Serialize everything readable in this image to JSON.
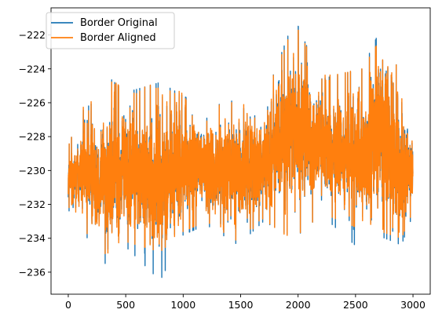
{
  "chart_data": {
    "type": "line",
    "title": "",
    "xlabel": "",
    "ylabel": "",
    "xlim": [
      -150,
      3150
    ],
    "ylim": [
      -237.3,
      -220.4
    ],
    "xticks": [
      0,
      500,
      1000,
      1500,
      2000,
      2500,
      3000
    ],
    "yticks": [
      -236,
      -234,
      -232,
      -230,
      -228,
      -226,
      -224,
      -222
    ],
    "legend_position": "top-left",
    "grid": false,
    "series": [
      {
        "name": "Border Original",
        "color": "#1f77b4",
        "n_points": 3000,
        "envelope": [
          {
            "x": 0,
            "min": -232.3,
            "max": -228.6
          },
          {
            "x": 100,
            "min": -233.5,
            "max": -226.6
          },
          {
            "x": 250,
            "min": -234.6,
            "max": -225.8
          },
          {
            "x": 370,
            "min": -236.1,
            "max": -224.6
          },
          {
            "x": 500,
            "min": -234.5,
            "max": -225.4
          },
          {
            "x": 800,
            "min": -236.5,
            "max": -224.8
          },
          {
            "x": 1000,
            "min": -233.8,
            "max": -225.6
          },
          {
            "x": 1200,
            "min": -233.2,
            "max": -226.3
          },
          {
            "x": 1480,
            "min": -234.4,
            "max": -225.8
          },
          {
            "x": 1700,
            "min": -233.0,
            "max": -225.9
          },
          {
            "x": 1970,
            "min": -234.0,
            "max": -221.0
          },
          {
            "x": 2200,
            "min": -232.6,
            "max": -224.6
          },
          {
            "x": 2560,
            "min": -234.8,
            "max": -224.0
          },
          {
            "x": 2720,
            "min": -233.9,
            "max": -221.6
          },
          {
            "x": 2900,
            "min": -234.4,
            "max": -224.5
          },
          {
            "x": 3000,
            "min": -232.6,
            "max": -228.3
          }
        ]
      },
      {
        "name": "Border Aligned",
        "color": "#ff7f0e",
        "n_points": 3000,
        "envelope": [
          {
            "x": 0,
            "min": -232.1,
            "max": -228.6
          },
          {
            "x": 100,
            "min": -233.4,
            "max": -226.4
          },
          {
            "x": 250,
            "min": -234.5,
            "max": -225.6
          },
          {
            "x": 390,
            "min": -235.3,
            "max": -224.7
          },
          {
            "x": 500,
            "min": -234.2,
            "max": -225.3
          },
          {
            "x": 800,
            "min": -234.8,
            "max": -224.4
          },
          {
            "x": 1000,
            "min": -233.6,
            "max": -225.5
          },
          {
            "x": 1200,
            "min": -233.0,
            "max": -226.0
          },
          {
            "x": 1480,
            "min": -234.2,
            "max": -225.6
          },
          {
            "x": 1700,
            "min": -232.9,
            "max": -225.8
          },
          {
            "x": 1970,
            "min": -234.2,
            "max": -221.3
          },
          {
            "x": 2200,
            "min": -232.5,
            "max": -224.4
          },
          {
            "x": 2560,
            "min": -233.5,
            "max": -224.0
          },
          {
            "x": 2720,
            "min": -233.6,
            "max": -222.2
          },
          {
            "x": 2900,
            "min": -234.0,
            "max": -224.3
          },
          {
            "x": 3000,
            "min": -232.4,
            "max": -228.2
          }
        ]
      }
    ]
  }
}
